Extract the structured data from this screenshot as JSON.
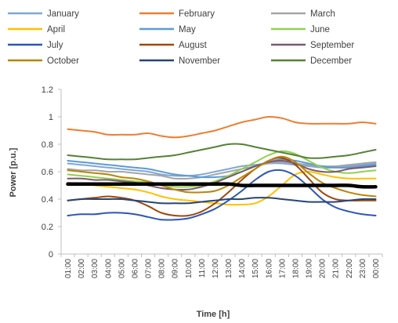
{
  "chart_data": {
    "type": "line",
    "xlabel": "Time [h]",
    "ylabel": "Power [p.u.]",
    "ylim": [
      0,
      1.2
    ],
    "yticks": [
      "0",
      "0.2",
      "0.4",
      "0.6",
      "0.8",
      "1",
      "1.2"
    ],
    "grid": false,
    "legend_position": "top",
    "categories": [
      "01:00",
      "02:00",
      "03:00",
      "04:00",
      "05:00",
      "06:00",
      "07:00",
      "08:00",
      "09:00",
      "10:00",
      "11:00",
      "12:00",
      "13:00",
      "14:00",
      "15:00",
      "16:00",
      "17:00",
      "18:00",
      "19:00",
      "20:00",
      "21:00",
      "22:00",
      "23:00",
      "00:00"
    ],
    "series": [
      {
        "name": "January",
        "color": "#7fa7d6",
        "values": [
          0.66,
          0.65,
          0.64,
          0.63,
          0.62,
          0.61,
          0.6,
          0.58,
          0.57,
          0.57,
          0.58,
          0.6,
          0.62,
          0.64,
          0.65,
          0.66,
          0.66,
          0.65,
          0.64,
          0.63,
          0.63,
          0.64,
          0.65,
          0.66
        ]
      },
      {
        "name": "February",
        "color": "#ed7d31",
        "values": [
          0.91,
          0.9,
          0.89,
          0.87,
          0.87,
          0.87,
          0.88,
          0.86,
          0.85,
          0.86,
          0.88,
          0.9,
          0.93,
          0.96,
          0.98,
          1.0,
          0.99,
          0.96,
          0.95,
          0.95,
          0.95,
          0.95,
          0.96,
          0.95
        ]
      },
      {
        "name": "March",
        "color": "#a5a5a5",
        "values": [
          0.62,
          0.61,
          0.61,
          0.6,
          0.6,
          0.59,
          0.58,
          0.57,
          0.55,
          0.55,
          0.56,
          0.58,
          0.6,
          0.62,
          0.64,
          0.66,
          0.67,
          0.66,
          0.65,
          0.64,
          0.64,
          0.65,
          0.66,
          0.67
        ]
      },
      {
        "name": "April",
        "color": "#ffc000",
        "values": [
          0.52,
          0.51,
          0.5,
          0.49,
          0.48,
          0.47,
          0.45,
          0.42,
          0.4,
          0.39,
          0.38,
          0.37,
          0.36,
          0.36,
          0.37,
          0.42,
          0.5,
          0.58,
          0.6,
          0.58,
          0.56,
          0.55,
          0.55,
          0.55
        ]
      },
      {
        "name": "May",
        "color": "#5b9bd5",
        "values": [
          0.68,
          0.67,
          0.66,
          0.65,
          0.64,
          0.63,
          0.62,
          0.6,
          0.58,
          0.57,
          0.56,
          0.56,
          0.57,
          0.6,
          0.64,
          0.67,
          0.69,
          0.68,
          0.66,
          0.64,
          0.63,
          0.63,
          0.64,
          0.65
        ]
      },
      {
        "name": "June",
        "color": "#92d050",
        "values": [
          0.58,
          0.57,
          0.56,
          0.55,
          0.54,
          0.53,
          0.52,
          0.5,
          0.49,
          0.49,
          0.5,
          0.53,
          0.57,
          0.62,
          0.67,
          0.72,
          0.75,
          0.73,
          0.68,
          0.63,
          0.6,
          0.59,
          0.6,
          0.61
        ]
      },
      {
        "name": "July",
        "color": "#2e56b4",
        "values": [
          0.28,
          0.29,
          0.29,
          0.3,
          0.3,
          0.29,
          0.27,
          0.25,
          0.25,
          0.26,
          0.29,
          0.33,
          0.39,
          0.46,
          0.54,
          0.6,
          0.61,
          0.57,
          0.49,
          0.4,
          0.34,
          0.31,
          0.29,
          0.28
        ]
      },
      {
        "name": "August",
        "color": "#9e480e",
        "values": [
          0.39,
          0.4,
          0.41,
          0.42,
          0.41,
          0.39,
          0.35,
          0.3,
          0.28,
          0.28,
          0.31,
          0.37,
          0.45,
          0.54,
          0.62,
          0.68,
          0.7,
          0.65,
          0.55,
          0.45,
          0.4,
          0.39,
          0.39,
          0.39
        ]
      },
      {
        "name": "September",
        "color": "#7b5a6e",
        "values": [
          0.55,
          0.55,
          0.54,
          0.54,
          0.53,
          0.52,
          0.5,
          0.48,
          0.47,
          0.47,
          0.49,
          0.52,
          0.56,
          0.6,
          0.64,
          0.67,
          0.68,
          0.66,
          0.62,
          0.6,
          0.6,
          0.62,
          0.63,
          0.64
        ]
      },
      {
        "name": "October",
        "color": "#b8860b",
        "values": [
          0.61,
          0.6,
          0.59,
          0.58,
          0.56,
          0.55,
          0.53,
          0.5,
          0.47,
          0.45,
          0.45,
          0.46,
          0.5,
          0.56,
          0.62,
          0.68,
          0.71,
          0.67,
          0.59,
          0.52,
          0.48,
          0.45,
          0.43,
          0.42
        ]
      },
      {
        "name": "November",
        "color": "#264478",
        "values": [
          0.39,
          0.4,
          0.4,
          0.4,
          0.4,
          0.39,
          0.38,
          0.37,
          0.37,
          0.37,
          0.38,
          0.39,
          0.4,
          0.4,
          0.41,
          0.41,
          0.4,
          0.39,
          0.38,
          0.38,
          0.38,
          0.39,
          0.4,
          0.4
        ]
      },
      {
        "name": "December",
        "color": "#548235",
        "values": [
          0.72,
          0.71,
          0.7,
          0.69,
          0.69,
          0.69,
          0.7,
          0.71,
          0.72,
          0.74,
          0.76,
          0.78,
          0.8,
          0.8,
          0.78,
          0.76,
          0.74,
          0.72,
          0.7,
          0.7,
          0.71,
          0.72,
          0.74,
          0.76
        ]
      },
      {
        "name": "",
        "color": "#000000",
        "role": "reference",
        "values": [
          0.51,
          0.51,
          0.51,
          0.51,
          0.51,
          0.51,
          0.51,
          0.51,
          0.51,
          0.51,
          0.51,
          0.51,
          0.51,
          0.5,
          0.5,
          0.5,
          0.5,
          0.5,
          0.5,
          0.5,
          0.5,
          0.5,
          0.49,
          0.49
        ]
      }
    ]
  }
}
